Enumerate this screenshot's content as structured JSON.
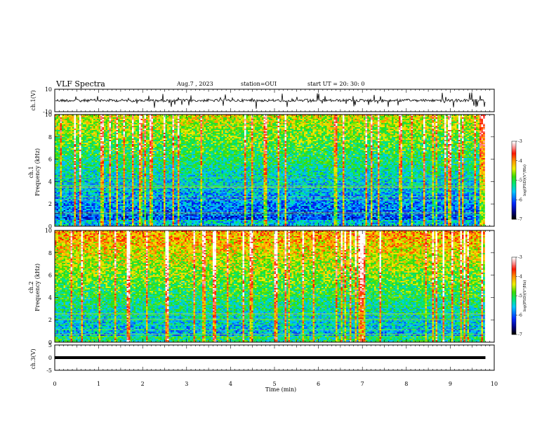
{
  "header": {
    "title": "VLF Spectra",
    "date": "Aug.7 , 2023",
    "station": "station=OUI",
    "start_ut": "start UT = 20: 30: 0"
  },
  "chart_data": [
    {
      "type": "line",
      "panel": "ch1-waveform",
      "ylabel": "ch.1(V)",
      "xlim": [
        0,
        10
      ],
      "ylim": [
        -10,
        10
      ],
      "yticks": [
        "10",
        "-10"
      ],
      "description_level_V": 0,
      "series": [
        {
          "x": [
            0,
            9.8
          ],
          "y": [
            0,
            0
          ]
        }
      ]
    },
    {
      "type": "heatmap",
      "panel": "ch1-spectrogram",
      "ylabel_line1": "ch.1",
      "ylabel_line2": "Frequency (kHz)",
      "xlim": [
        0,
        10
      ],
      "ylim": [
        0,
        10
      ],
      "data_end_min": 9.8,
      "yticks": [
        "0",
        "2",
        "4",
        "6",
        "8",
        "10"
      ],
      "colorbar": {
        "label": "log(PSD)(V²/Hz)",
        "range": [
          -7,
          -3
        ],
        "ticks": [
          "-3",
          "-4",
          "-5",
          "-6",
          "-7"
        ]
      }
    },
    {
      "type": "heatmap",
      "panel": "ch2-spectrogram",
      "ylabel_line1": "ch.2",
      "ylabel_line2": "Frequency (kHz)",
      "xlim": [
        0,
        10
      ],
      "ylim": [
        0,
        10
      ],
      "data_end_min": 9.8,
      "yticks": [
        "0",
        "2",
        "4",
        "6",
        "8",
        "10"
      ],
      "colorbar": {
        "label": "log(PSD)(V²/Hz)",
        "range": [
          -7,
          -3
        ],
        "ticks": [
          "-3",
          "-4",
          "-5",
          "-6",
          "-7"
        ]
      }
    },
    {
      "type": "line",
      "panel": "ch3-waveform",
      "ylabel": "ch.3(V)",
      "xlim": [
        0,
        10
      ],
      "ylim": [
        -5,
        5
      ],
      "yticks": [
        "5",
        "0",
        "-5"
      ],
      "series": [
        {
          "x": [
            0,
            9.8
          ],
          "y": [
            0,
            0
          ]
        }
      ]
    }
  ],
  "xaxis": {
    "label": "Time (min)",
    "ticks": [
      "0",
      "1",
      "2",
      "3",
      "4",
      "5",
      "6",
      "7",
      "8",
      "9",
      "10"
    ]
  }
}
